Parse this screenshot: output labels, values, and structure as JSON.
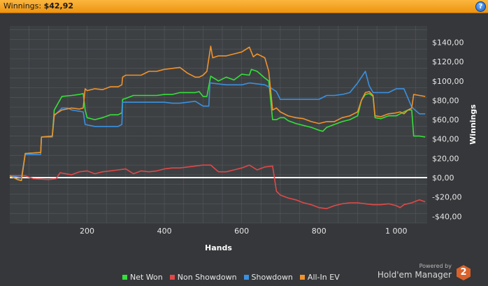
{
  "header": {
    "label": "Winnings:",
    "value": "$42,92",
    "help_icon": "help-icon",
    "help_label": "?"
  },
  "colors": {
    "net_won": "#35e03a",
    "non_showdown": "#e04848",
    "showdown": "#3a90e0",
    "allin_ev": "#f0922c",
    "zero_line": "#ffffff",
    "plot_bg": "#3d4043",
    "grid": "#55585c",
    "text": "#e6e6e6"
  },
  "brand": {
    "powered": "Powered by",
    "name": "Hold'em Manager",
    "logo": "2"
  },
  "chart_data": {
    "type": "line",
    "xlabel": "Hands",
    "ylabel": "Winnings",
    "xlim": [
      0,
      1080
    ],
    "ylim": [
      -47,
      157
    ],
    "x_ticks": [
      200,
      400,
      600,
      800,
      1000
    ],
    "x_tick_labels": [
      "200",
      "400",
      "600",
      "800",
      "1 000"
    ],
    "y_ticks": [
      140,
      120,
      100,
      80,
      60,
      40,
      20,
      0,
      -20,
      -40
    ],
    "y_tick_labels": [
      "$140,00",
      "$120,00",
      "$100,00",
      "$80,00",
      "$60,00",
      "$40,00",
      "$20,00",
      "$0,00",
      "-$20,00",
      "-$40,00"
    ],
    "grid": true,
    "legend_position": "bottom",
    "series": [
      {
        "name": "Net Won",
        "color": "#35e03a",
        "points": [
          [
            0,
            2
          ],
          [
            20,
            -2
          ],
          [
            30,
            -3
          ],
          [
            40,
            25
          ],
          [
            80,
            26
          ],
          [
            82,
            42
          ],
          [
            110,
            43
          ],
          [
            115,
            70
          ],
          [
            135,
            84
          ],
          [
            160,
            85
          ],
          [
            180,
            86
          ],
          [
            190,
            87
          ],
          [
            195,
            70
          ],
          [
            200,
            62
          ],
          [
            220,
            60
          ],
          [
            240,
            62
          ],
          [
            260,
            65
          ],
          [
            280,
            65
          ],
          [
            290,
            67
          ],
          [
            292,
            81
          ],
          [
            300,
            82
          ],
          [
            320,
            85
          ],
          [
            340,
            85
          ],
          [
            360,
            85
          ],
          [
            380,
            85
          ],
          [
            400,
            86
          ],
          [
            420,
            86
          ],
          [
            440,
            88
          ],
          [
            460,
            88
          ],
          [
            480,
            88
          ],
          [
            490,
            89
          ],
          [
            500,
            84
          ],
          [
            510,
            84
          ],
          [
            520,
            105
          ],
          [
            540,
            100
          ],
          [
            560,
            104
          ],
          [
            580,
            101
          ],
          [
            600,
            107
          ],
          [
            620,
            106
          ],
          [
            625,
            112
          ],
          [
            640,
            110
          ],
          [
            660,
            103
          ],
          [
            670,
            100
          ],
          [
            680,
            60
          ],
          [
            690,
            60
          ],
          [
            700,
            62
          ],
          [
            710,
            62
          ],
          [
            720,
            59
          ],
          [
            740,
            56
          ],
          [
            760,
            54
          ],
          [
            780,
            52
          ],
          [
            800,
            49
          ],
          [
            810,
            48
          ],
          [
            820,
            52
          ],
          [
            840,
            55
          ],
          [
            860,
            58
          ],
          [
            880,
            60
          ],
          [
            900,
            64
          ],
          [
            910,
            80
          ],
          [
            920,
            86
          ],
          [
            930,
            87
          ],
          [
            940,
            84
          ],
          [
            945,
            62
          ],
          [
            960,
            61
          ],
          [
            980,
            64
          ],
          [
            1000,
            64
          ],
          [
            1010,
            66
          ],
          [
            1020,
            68
          ],
          [
            1030,
            70
          ],
          [
            1040,
            70
          ],
          [
            1045,
            43
          ],
          [
            1060,
            43
          ],
          [
            1075,
            42
          ]
        ]
      },
      {
        "name": "Non Showdown",
        "color": "#e04848",
        "points": [
          [
            0,
            2
          ],
          [
            40,
            2
          ],
          [
            60,
            -1
          ],
          [
            100,
            -2
          ],
          [
            120,
            -1
          ],
          [
            130,
            5
          ],
          [
            160,
            3
          ],
          [
            180,
            6
          ],
          [
            200,
            7
          ],
          [
            220,
            4
          ],
          [
            240,
            6
          ],
          [
            260,
            7
          ],
          [
            280,
            8
          ],
          [
            300,
            9
          ],
          [
            320,
            4
          ],
          [
            340,
            7
          ],
          [
            360,
            6
          ],
          [
            380,
            7
          ],
          [
            400,
            9
          ],
          [
            420,
            10
          ],
          [
            440,
            10
          ],
          [
            460,
            11
          ],
          [
            480,
            12
          ],
          [
            500,
            13
          ],
          [
            520,
            13
          ],
          [
            540,
            6
          ],
          [
            560,
            6
          ],
          [
            580,
            8
          ],
          [
            600,
            10
          ],
          [
            620,
            13
          ],
          [
            640,
            8
          ],
          [
            660,
            11
          ],
          [
            680,
            12
          ],
          [
            690,
            -14
          ],
          [
            700,
            -18
          ],
          [
            720,
            -21
          ],
          [
            740,
            -23
          ],
          [
            760,
            -26
          ],
          [
            780,
            -28
          ],
          [
            800,
            -31
          ],
          [
            820,
            -32
          ],
          [
            840,
            -29
          ],
          [
            860,
            -27
          ],
          [
            880,
            -26
          ],
          [
            900,
            -26
          ],
          [
            920,
            -27
          ],
          [
            940,
            -28
          ],
          [
            960,
            -28
          ],
          [
            980,
            -27
          ],
          [
            1000,
            -29
          ],
          [
            1010,
            -31
          ],
          [
            1020,
            -28
          ],
          [
            1040,
            -26
          ],
          [
            1060,
            -23
          ],
          [
            1075,
            -25
          ]
        ]
      },
      {
        "name": "Showdown",
        "color": "#3a90e0",
        "points": [
          [
            0,
            2
          ],
          [
            30,
            0
          ],
          [
            40,
            24
          ],
          [
            80,
            24
          ],
          [
            82,
            42
          ],
          [
            110,
            42
          ],
          [
            115,
            64
          ],
          [
            135,
            72
          ],
          [
            150,
            72
          ],
          [
            160,
            70
          ],
          [
            190,
            68
          ],
          [
            195,
            55
          ],
          [
            220,
            53
          ],
          [
            260,
            53
          ],
          [
            280,
            53
          ],
          [
            290,
            55
          ],
          [
            292,
            78
          ],
          [
            340,
            78
          ],
          [
            400,
            78
          ],
          [
            420,
            77
          ],
          [
            440,
            77
          ],
          [
            460,
            78
          ],
          [
            480,
            79
          ],
          [
            500,
            74
          ],
          [
            515,
            74
          ],
          [
            518,
            98
          ],
          [
            560,
            96
          ],
          [
            600,
            96
          ],
          [
            620,
            98
          ],
          [
            660,
            96
          ],
          [
            675,
            93
          ],
          [
            690,
            89
          ],
          [
            700,
            81
          ],
          [
            720,
            81
          ],
          [
            760,
            81
          ],
          [
            780,
            81
          ],
          [
            800,
            81
          ],
          [
            820,
            85
          ],
          [
            840,
            85
          ],
          [
            860,
            86
          ],
          [
            880,
            88
          ],
          [
            900,
            98
          ],
          [
            920,
            110
          ],
          [
            930,
            95
          ],
          [
            940,
            88
          ],
          [
            960,
            88
          ],
          [
            980,
            88
          ],
          [
            1000,
            92
          ],
          [
            1020,
            92
          ],
          [
            1040,
            73
          ],
          [
            1060,
            66
          ],
          [
            1075,
            66
          ]
        ]
      },
      {
        "name": "All-In EV",
        "color": "#f0922c",
        "points": [
          [
            0,
            2
          ],
          [
            20,
            -2
          ],
          [
            30,
            -3
          ],
          [
            40,
            25
          ],
          [
            80,
            26
          ],
          [
            82,
            42
          ],
          [
            110,
            43
          ],
          [
            115,
            65
          ],
          [
            135,
            70
          ],
          [
            160,
            72
          ],
          [
            180,
            71
          ],
          [
            190,
            72
          ],
          [
            195,
            92
          ],
          [
            200,
            90
          ],
          [
            220,
            92
          ],
          [
            240,
            91
          ],
          [
            260,
            94
          ],
          [
            280,
            94
          ],
          [
            290,
            96
          ],
          [
            292,
            104
          ],
          [
            300,
            106
          ],
          [
            340,
            106
          ],
          [
            360,
            110
          ],
          [
            380,
            110
          ],
          [
            400,
            112
          ],
          [
            420,
            113
          ],
          [
            440,
            114
          ],
          [
            460,
            108
          ],
          [
            480,
            104
          ],
          [
            490,
            104
          ],
          [
            500,
            106
          ],
          [
            510,
            110
          ],
          [
            520,
            136
          ],
          [
            525,
            124
          ],
          [
            540,
            126
          ],
          [
            560,
            126
          ],
          [
            580,
            128
          ],
          [
            600,
            130
          ],
          [
            620,
            135
          ],
          [
            630,
            125
          ],
          [
            640,
            128
          ],
          [
            660,
            124
          ],
          [
            670,
            110
          ],
          [
            680,
            70
          ],
          [
            690,
            72
          ],
          [
            700,
            68
          ],
          [
            720,
            64
          ],
          [
            740,
            62
          ],
          [
            760,
            61
          ],
          [
            780,
            58
          ],
          [
            800,
            56
          ],
          [
            820,
            58
          ],
          [
            840,
            58
          ],
          [
            860,
            62
          ],
          [
            880,
            64
          ],
          [
            900,
            68
          ],
          [
            910,
            80
          ],
          [
            920,
            88
          ],
          [
            930,
            89
          ],
          [
            940,
            85
          ],
          [
            945,
            64
          ],
          [
            960,
            63
          ],
          [
            980,
            66
          ],
          [
            1000,
            67
          ],
          [
            1010,
            68
          ],
          [
            1020,
            66
          ],
          [
            1030,
            70
          ],
          [
            1040,
            72
          ],
          [
            1045,
            86
          ],
          [
            1060,
            85
          ],
          [
            1075,
            84
          ]
        ]
      }
    ]
  }
}
